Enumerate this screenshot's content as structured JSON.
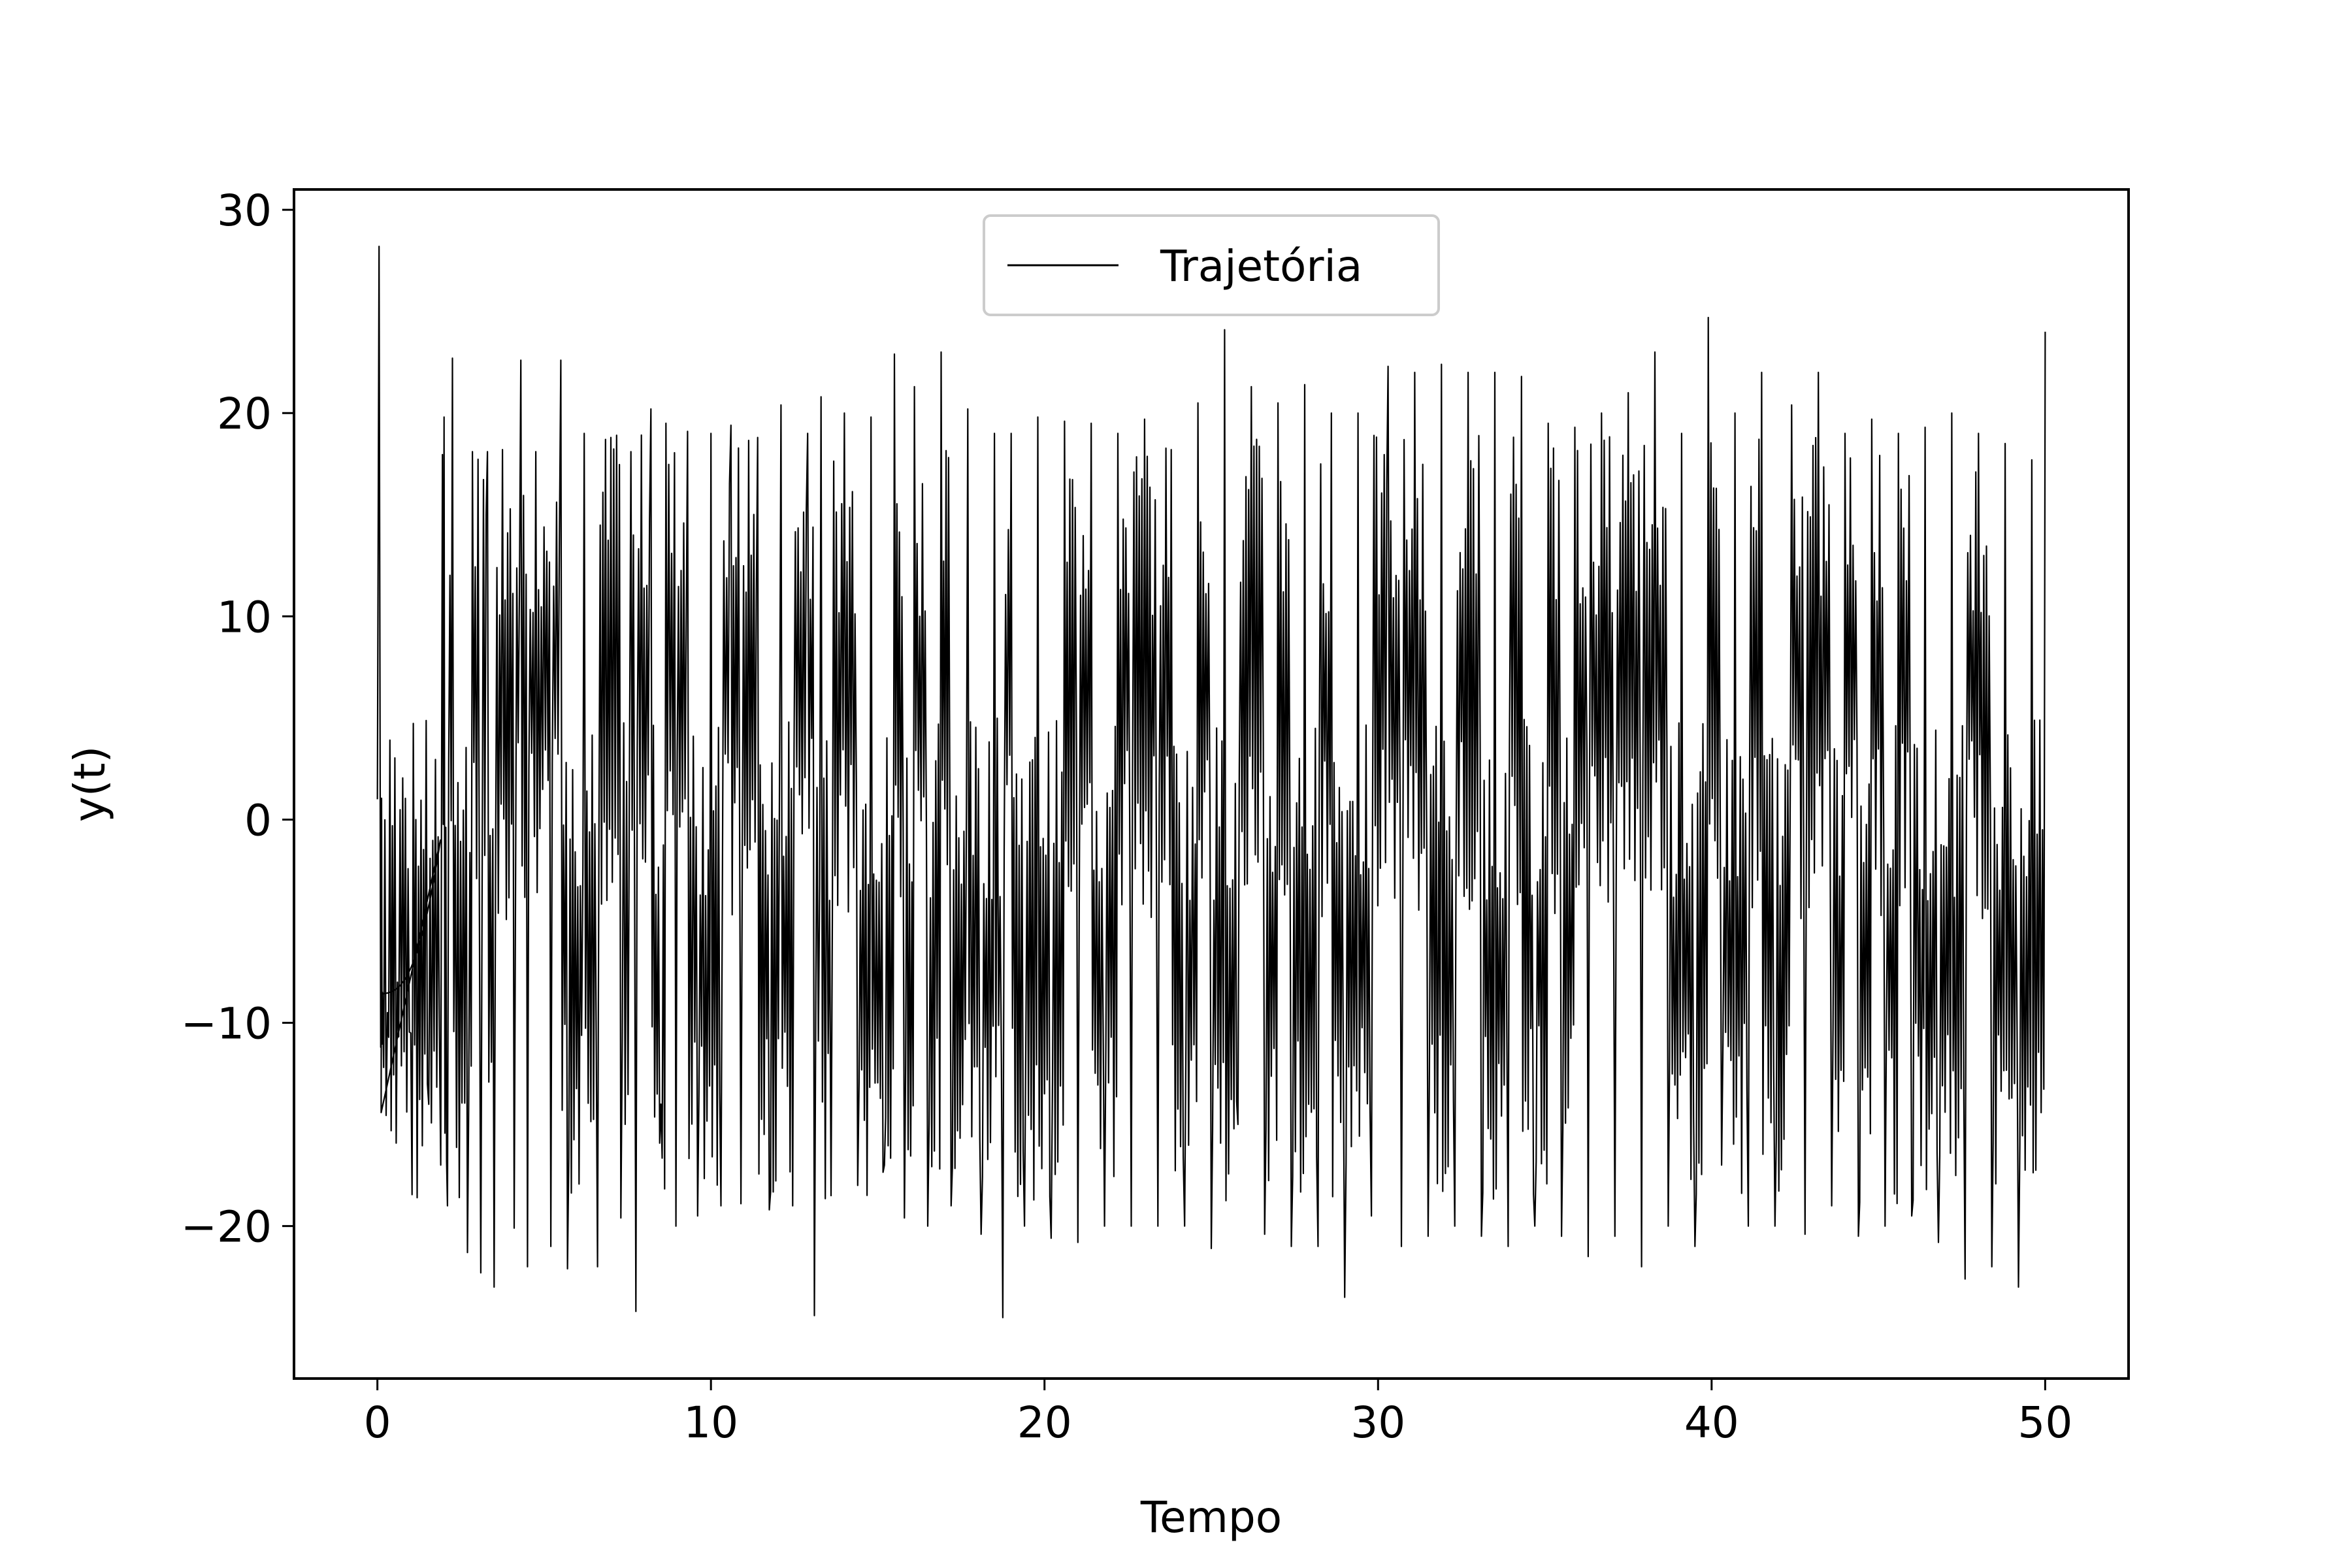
{
  "chart_data": {
    "type": "line",
    "title": "",
    "xlabel": "Tempo",
    "ylabel": "y(t)",
    "xlim": [
      -2.5,
      52.5
    ],
    "ylim": [
      -27.5,
      31
    ],
    "x_ticks": [
      0,
      10,
      20,
      30,
      40,
      50
    ],
    "y_ticks": [
      -20,
      -10,
      0,
      10,
      20,
      30
    ],
    "x_tick_labels": [
      "0",
      "10",
      "20",
      "30",
      "40",
      "50"
    ],
    "y_tick_labels": [
      "−20",
      "−10",
      "0",
      "10",
      "20",
      "30"
    ],
    "grid": false,
    "legend": {
      "placement": "upper center",
      "entries": [
        "Trajetória"
      ]
    },
    "colors": {
      "line": "#000000"
    },
    "series": [
      {
        "name": "Trajetória",
        "x_range": [
          0,
          50
        ],
        "description_points": {
          "x": [
            0,
            0.05,
            0.1,
            0.15,
            0.3,
            0.6,
            1.0,
            1.5,
            1.9,
            2.0,
            2.1,
            2.25,
            2.7,
            2.85,
            3.1,
            3.3,
            3.5,
            3.75,
            4.1,
            4.3,
            4.5,
            4.75,
            5.2,
            5.5,
            5.7,
            6.2,
            6.6,
            7.0,
            7.3,
            7.6,
            7.75,
            8.2,
            8.5,
            8.65,
            8.95,
            9.3,
            9.6,
            10.0,
            10.3,
            10.6,
            10.9,
            11.4,
            11.75,
            12.1,
            12.45,
            12.9,
            13.1,
            13.3,
            13.6,
            14.0,
            14.4,
            14.8,
            15.2,
            15.5,
            15.8,
            16.1,
            16.5,
            16.9,
            17.2,
            17.7,
            18.1,
            18.5,
            18.75,
            19.0,
            19.4,
            19.8,
            20.2,
            20.6,
            21.0,
            21.4,
            21.8,
            22.2,
            22.6,
            23.0,
            23.4,
            23.8,
            24.2,
            24.6,
            25.0,
            25.4,
            25.8,
            26.2,
            26.6,
            27.0,
            27.4,
            27.8,
            28.2,
            28.6,
            29.0,
            29.4,
            29.8,
            30.3,
            30.7,
            31.1,
            31.5,
            31.9,
            32.3,
            32.7,
            33.1,
            33.5,
            33.9,
            34.3,
            34.7,
            35.1,
            35.5,
            35.9,
            36.3,
            36.7,
            37.1,
            37.5,
            37.9,
            38.3,
            38.7,
            39.1,
            39.5,
            39.9,
            40.3,
            40.7,
            41.1,
            41.5,
            41.9,
            42.4,
            42.8,
            43.2,
            43.6,
            44.0,
            44.4,
            44.8,
            45.2,
            45.6,
            46.0,
            46.4,
            46.8,
            47.2,
            47.6,
            48.0,
            48.4,
            48.8,
            49.2,
            49.6,
            50.0
          ],
          "y": [
            1,
            28.2,
            -11.2,
            -8.5,
            -9.5,
            -8.0,
            -10.5,
            -13.0,
            -17.0,
            19.8,
            -19.0,
            22.7,
            -21.3,
            18.1,
            -22.3,
            18.1,
            -23.0,
            18.2,
            -20.1,
            22.6,
            -22.0,
            18.1,
            -21.0,
            22.6,
            -22.1,
            19.0,
            -22.0,
            18.8,
            -19.6,
            18.1,
            -24.2,
            20.2,
            -14.0,
            19.5,
            -20.0,
            19.1,
            -19.5,
            19.0,
            -19.0,
            19.4,
            -18.9,
            18.8,
            -19.2,
            20.4,
            -19.0,
            19.0,
            -24.4,
            20.8,
            -18.5,
            20.0,
            -18.0,
            19.8,
            -17.0,
            22.9,
            -19.6,
            21.3,
            -20.0,
            23.0,
            -19.0,
            20.2,
            -20.4,
            19.0,
            -24.5,
            19.0,
            -20.0,
            19.8,
            -20.6,
            19.6,
            -20.8,
            19.5,
            -20.0,
            19.0,
            -20.0,
            19.7,
            -20.0,
            18.2,
            -20.0,
            20.5,
            -21.1,
            24.1,
            -15.0,
            21.3,
            -20.4,
            20.5,
            -21.0,
            21.4,
            -21.0,
            20.0,
            -23.5,
            20.0,
            -19.5,
            22.3,
            -21.0,
            22.0,
            -20.5,
            22.4,
            -20.0,
            22.0,
            -20.5,
            22.0,
            -21.0,
            21.8,
            -20.0,
            19.5,
            -20.5,
            19.3,
            -21.5,
            20.0,
            -20.5,
            21.0,
            -22.0,
            23.0,
            -20.0,
            19.0,
            -21.0,
            24.7,
            -17.0,
            20.0,
            -20.0,
            22.0,
            -20.0,
            20.4,
            -20.4,
            22.0,
            -19.0,
            19.0,
            -20.5,
            19.7,
            -20.0,
            19.0,
            -19.5,
            19.3,
            -20.8,
            20.0,
            -22.6,
            19.0,
            -22.0,
            18.5,
            -23.0,
            17.7,
            24.0
          ]
        }
      }
    ]
  }
}
